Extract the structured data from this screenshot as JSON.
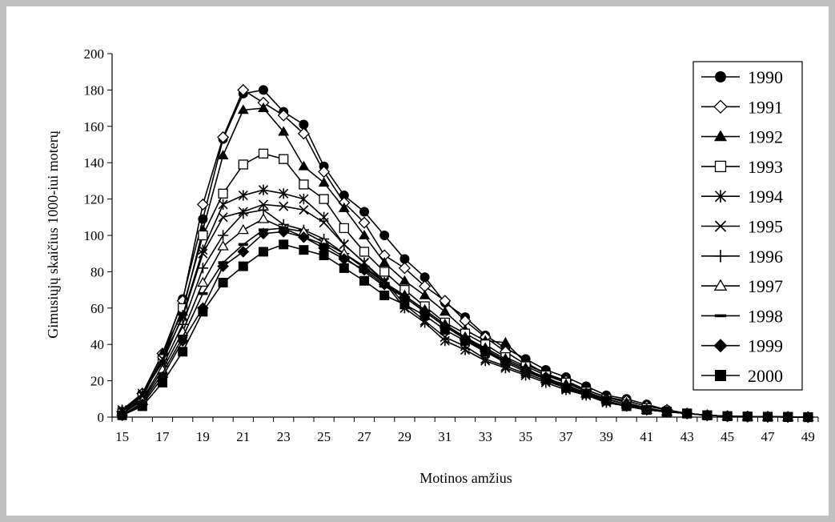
{
  "chart_data": {
    "type": "line",
    "title": "",
    "xlabel": "Motinos amžius",
    "ylabel": "Gimusiųjų skaičius 1000-iui moterų",
    "xlim": [
      15,
      49
    ],
    "ylim": [
      0,
      200
    ],
    "x_tick_labels": [
      "15",
      "17",
      "19",
      "21",
      "23",
      "25",
      "27",
      "29",
      "31",
      "33",
      "35",
      "37",
      "39",
      "41",
      "43",
      "45",
      "47",
      "49"
    ],
    "y_tick_labels": [
      "0",
      "20",
      "40",
      "60",
      "80",
      "100",
      "120",
      "140",
      "160",
      "180",
      "200"
    ],
    "legend_position": "right",
    "grid": false,
    "x": [
      15,
      16,
      17,
      18,
      19,
      20,
      21,
      22,
      23,
      24,
      25,
      26,
      27,
      28,
      29,
      30,
      31,
      32,
      33,
      34,
      35,
      36,
      37,
      38,
      39,
      40,
      41,
      42,
      43,
      44,
      45,
      46,
      47,
      48,
      49
    ],
    "series": [
      {
        "name": "1990",
        "marker": "circle-filled",
        "values": [
          2,
          11,
          33,
          65,
          109,
          153,
          178,
          180,
          168,
          161,
          138,
          122,
          113,
          100,
          87,
          77,
          63,
          55,
          45,
          38,
          32,
          26,
          22,
          17,
          12,
          10,
          7,
          4,
          2,
          1,
          0.5,
          0.3,
          0.2,
          0.1,
          0
        ]
      },
      {
        "name": "1991",
        "marker": "diamond-open",
        "values": [
          3,
          13,
          35,
          64,
          117,
          154,
          180,
          173,
          166,
          156,
          135,
          118,
          107,
          89,
          82,
          72,
          64,
          53,
          44,
          36,
          29,
          24,
          20,
          15,
          11,
          9,
          6,
          4,
          2,
          1,
          0.5,
          0.3,
          0.2,
          0.1,
          0
        ]
      },
      {
        "name": "1992",
        "marker": "triangle-filled",
        "values": [
          3,
          12,
          35,
          58,
          103,
          144,
          169,
          170,
          157,
          138,
          129,
          115,
          100,
          85,
          75,
          67,
          58,
          48,
          42,
          41,
          30,
          24,
          19,
          15,
          11,
          8,
          5,
          3,
          2,
          1,
          0.5,
          0.3,
          0.2,
          0.1,
          0
        ]
      },
      {
        "name": "1993",
        "marker": "square-open",
        "values": [
          2,
          11,
          32,
          60,
          100,
          123,
          139,
          145,
          142,
          128,
          120,
          104,
          91,
          80,
          70,
          61,
          52,
          46,
          40,
          33,
          28,
          23,
          19,
          14,
          10,
          7,
          5,
          3,
          2,
          1,
          0.5,
          0.3,
          0.2,
          0.1,
          0
        ]
      },
      {
        "name": "1994",
        "marker": "asterisk",
        "values": [
          4,
          13,
          30,
          56,
          92,
          117,
          122,
          125,
          123,
          120,
          110,
          95,
          85,
          74,
          60,
          52,
          42,
          37,
          31,
          27,
          23,
          19,
          15,
          12,
          8,
          6,
          4,
          3,
          2,
          1,
          0.5,
          0.3,
          0.2,
          0.1,
          0
        ]
      },
      {
        "name": "1995",
        "marker": "x",
        "values": [
          3,
          12,
          32,
          55,
          90,
          110,
          113,
          117,
          116,
          114,
          107,
          95,
          85,
          75,
          62,
          53,
          44,
          39,
          32,
          28,
          24,
          20,
          16,
          12,
          9,
          6,
          4,
          3,
          2,
          1,
          0.5,
          0.3,
          0.2,
          0.1,
          0
        ]
      },
      {
        "name": "1996",
        "marker": "plus",
        "values": [
          2,
          10,
          28,
          51,
          82,
          100,
          112,
          114,
          106,
          103,
          98,
          90,
          83,
          74,
          66,
          58,
          50,
          43,
          36,
          31,
          26,
          21,
          17,
          13,
          9,
          6,
          4,
          3,
          2,
          1,
          0.5,
          0.3,
          0.2,
          0.1,
          0
        ]
      },
      {
        "name": "1997",
        "marker": "triangle-open",
        "values": [
          2,
          9,
          26,
          47,
          74,
          94,
          103,
          109,
          104,
          102,
          96,
          90,
          82,
          74,
          67,
          59,
          51,
          44,
          38,
          32,
          27,
          21,
          18,
          13,
          10,
          7,
          4,
          3,
          2,
          1,
          0.5,
          0.3,
          0.2,
          0.1,
          0
        ]
      },
      {
        "name": "1998",
        "marker": "dash",
        "values": [
          1,
          8,
          24,
          44,
          68,
          85,
          95,
          103,
          104,
          99,
          95,
          88,
          80,
          72,
          66,
          58,
          50,
          44,
          37,
          31,
          26,
          22,
          17,
          13,
          10,
          7,
          4,
          3,
          2,
          1,
          0.5,
          0.3,
          0.2,
          0.1,
          0
        ]
      },
      {
        "name": "1999",
        "marker": "diamond-filled",
        "values": [
          1,
          7,
          22,
          42,
          60,
          83,
          91,
          101,
          102,
          99,
          93,
          87,
          81,
          73,
          66,
          58,
          50,
          43,
          37,
          31,
          26,
          22,
          17,
          13,
          10,
          7,
          4,
          3,
          2,
          1,
          0.5,
          0.3,
          0.2,
          0.1,
          0
        ]
      },
      {
        "name": "2000",
        "marker": "square-filled",
        "values": [
          1,
          6,
          19,
          36,
          58,
          74,
          83,
          91,
          95,
          92,
          89,
          82,
          75,
          67,
          62,
          56,
          48,
          42,
          36,
          30,
          25,
          21,
          16,
          13,
          9,
          6,
          4,
          3,
          2,
          1,
          0.5,
          0.3,
          0.2,
          0.1,
          0
        ]
      }
    ]
  }
}
